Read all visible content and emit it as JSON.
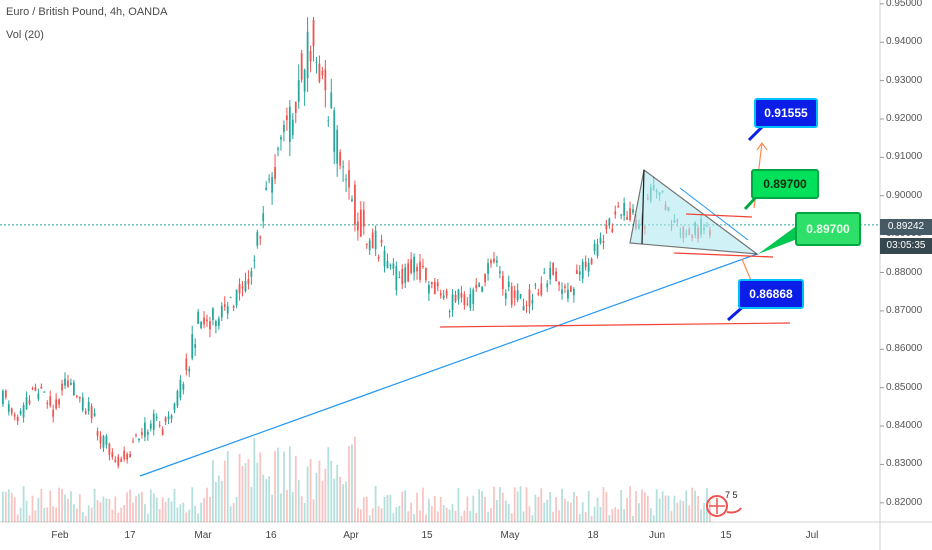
{
  "header": {
    "title": "Euro / British Pound, 4h, OANDA",
    "volume_label": "Vol (20)"
  },
  "price_axis": {
    "ticks": [
      "0.95000",
      "0.94000",
      "0.93000",
      "0.92000",
      "0.91000",
      "0.90000",
      "0.89000",
      "0.88000",
      "0.87000",
      "0.86000",
      "0.85000",
      "0.84000",
      "0.83000",
      "0.82000"
    ],
    "tick_values": [
      0.95,
      0.94,
      0.93,
      0.92,
      0.91,
      0.9,
      0.89,
      0.88,
      0.87,
      0.86,
      0.85,
      0.84,
      0.83,
      0.82
    ],
    "current_price": "0.89242",
    "countdown": "03:05:35"
  },
  "time_axis": {
    "labels": [
      "Feb",
      "17",
      "Mar",
      "16",
      "Apr",
      "15",
      "May",
      "18",
      "Jun",
      "15",
      "Jul"
    ]
  },
  "callouts": {
    "target_high": "0.91555",
    "target_mid": "0.89700",
    "target_right": "0.89700",
    "target_low": "0.86868"
  },
  "tv_logo_text": "7 5",
  "colors": {
    "up": "#26a69a",
    "down": "#ef5350",
    "trendline": "#2196f3",
    "support": "#f44336",
    "triangle_fill": "#b2ebf2",
    "arrow": "#ff8a50"
  },
  "chart_data": {
    "type": "candlestick",
    "title": "Euro / British Pound, 4h, OANDA",
    "ylim": [
      0.815,
      0.951
    ],
    "close_path": [
      [
        0.845,
        0.852
      ],
      [
        0.842,
        0.847
      ],
      [
        0.839,
        0.845
      ],
      [
        0.843,
        0.849
      ],
      [
        0.846,
        0.852
      ],
      [
        0.844,
        0.85
      ],
      [
        0.841,
        0.848
      ],
      [
        0.846,
        0.853
      ],
      [
        0.848,
        0.855
      ],
      [
        0.845,
        0.851
      ],
      [
        0.842,
        0.848
      ],
      [
        0.838,
        0.844
      ],
      [
        0.832,
        0.84
      ],
      [
        0.829,
        0.834
      ],
      [
        0.829,
        0.833
      ],
      [
        0.831,
        0.836
      ],
      [
        0.834,
        0.84
      ],
      [
        0.836,
        0.843
      ],
      [
        0.838,
        0.844
      ],
      [
        0.837,
        0.842
      ],
      [
        0.84,
        0.846
      ],
      [
        0.845,
        0.852
      ],
      [
        0.852,
        0.862
      ],
      [
        0.86,
        0.87
      ],
      [
        0.865,
        0.874
      ],
      [
        0.863,
        0.872
      ],
      [
        0.866,
        0.875
      ],
      [
        0.868,
        0.876
      ],
      [
        0.871,
        0.879
      ],
      [
        0.874,
        0.884
      ],
      [
        0.88,
        0.89
      ],
      [
        0.889,
        0.9
      ],
      [
        0.898,
        0.912
      ],
      [
        0.905,
        0.918
      ],
      [
        0.91,
        0.925
      ],
      [
        0.918,
        0.935
      ],
      [
        0.925,
        0.945
      ],
      [
        0.93,
        0.95
      ],
      [
        0.92,
        0.938
      ],
      [
        0.912,
        0.93
      ],
      [
        0.904,
        0.92
      ],
      [
        0.895,
        0.91
      ],
      [
        0.89,
        0.903
      ],
      [
        0.886,
        0.897
      ],
      [
        0.884,
        0.893
      ],
      [
        0.88,
        0.89
      ],
      [
        0.876,
        0.884
      ],
      [
        0.874,
        0.882
      ],
      [
        0.876,
        0.884
      ],
      [
        0.878,
        0.887
      ],
      [
        0.875,
        0.884
      ],
      [
        0.872,
        0.88
      ],
      [
        0.87,
        0.878
      ],
      [
        0.869,
        0.876
      ],
      [
        0.869,
        0.877
      ],
      [
        0.868,
        0.875
      ],
      [
        0.869,
        0.877
      ],
      [
        0.874,
        0.882
      ],
      [
        0.88,
        0.887
      ],
      [
        0.876,
        0.884
      ],
      [
        0.871,
        0.879
      ],
      [
        0.869,
        0.877
      ],
      [
        0.868,
        0.876
      ],
      [
        0.869,
        0.877
      ],
      [
        0.872,
        0.88
      ],
      [
        0.877,
        0.885
      ],
      [
        0.874,
        0.882
      ],
      [
        0.871,
        0.879
      ],
      [
        0.873,
        0.881
      ],
      [
        0.876,
        0.884
      ],
      [
        0.88,
        0.888
      ],
      [
        0.884,
        0.891
      ],
      [
        0.888,
        0.895
      ],
      [
        0.891,
        0.898
      ],
      [
        0.893,
        0.9
      ],
      [
        0.89,
        0.897
      ],
      [
        0.889,
        0.895
      ],
      [
        0.895,
        0.905
      ],
      [
        0.898,
        0.905
      ],
      [
        0.893,
        0.9
      ],
      [
        0.888,
        0.896
      ],
      [
        0.886,
        0.893
      ],
      [
        0.887,
        0.894
      ],
      [
        0.888,
        0.895
      ],
      [
        0.889,
        0.894
      ]
    ],
    "annotations": {
      "rising_trendline": [
        [
          "17 Feb",
          0.828
        ],
        [
          "late Jun",
          0.886
        ]
      ],
      "support_line": 0.867,
      "targets": [
        0.91555,
        0.897,
        0.86868
      ]
    }
  }
}
